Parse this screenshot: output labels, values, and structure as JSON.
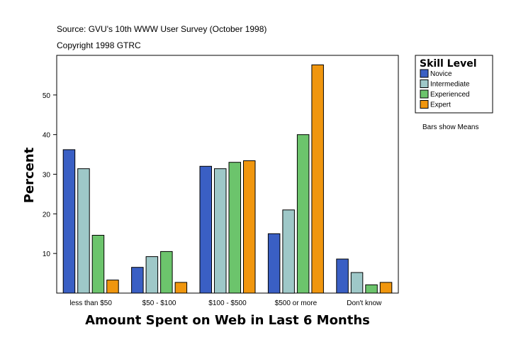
{
  "chart_data": {
    "type": "bar",
    "source_line": "Source: GVU's 10th WWW User Survey (October 1998)",
    "copyright_line": "Copyright 1998 GTRC",
    "xlabel": "Amount Spent on Web in Last 6 Months",
    "ylabel": "Percent",
    "note": "Bars show Means",
    "legend_title": "Skill Level",
    "legend_position": "right",
    "grid": false,
    "ylim": [
      0,
      60
    ],
    "yticks": [
      10,
      20,
      30,
      40,
      50
    ],
    "categories": [
      "less than $50",
      "$50 - $100",
      "$100 - $500",
      "$500 or more",
      "Don't know"
    ],
    "series": [
      {
        "name": "Novice",
        "color": "#3a5fc4",
        "values": [
          36.2,
          6.5,
          32.0,
          15.0,
          8.6
        ]
      },
      {
        "name": "Intermediate",
        "color": "#9ec8c8",
        "values": [
          31.4,
          9.2,
          31.4,
          21.0,
          5.2
        ]
      },
      {
        "name": "Experienced",
        "color": "#6cc46c",
        "values": [
          14.6,
          10.5,
          33.0,
          40.0,
          2.1
        ]
      },
      {
        "name": "Expert",
        "color": "#f0960e",
        "values": [
          3.3,
          2.7,
          33.4,
          57.6,
          2.7
        ]
      }
    ]
  }
}
